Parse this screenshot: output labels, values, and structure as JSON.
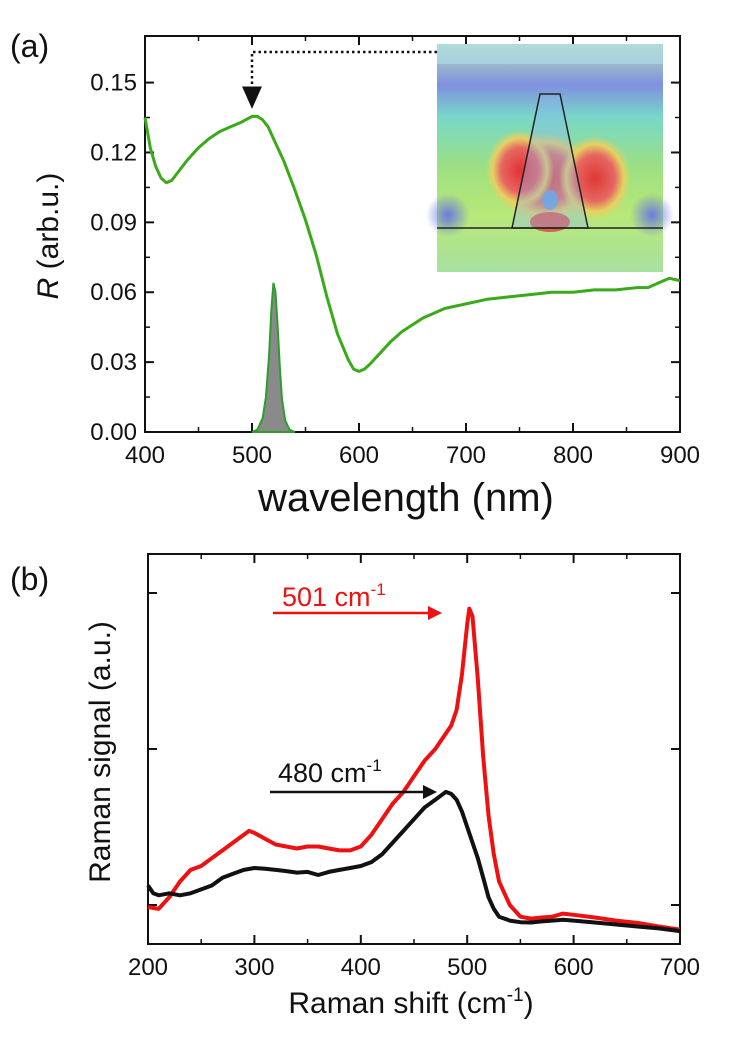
{
  "chart_data": [
    {
      "panel_label": "(a)",
      "type": "line",
      "xlabel": "wavelength (nm)",
      "ylabel_symbol": "R",
      "ylabel_unit": " (arb.u.)",
      "xlim": [
        400,
        900
      ],
      "ylim": [
        0,
        0.17
      ],
      "xticks": [
        400,
        500,
        600,
        700,
        800,
        900
      ],
      "xtick_labels": [
        "400",
        "500",
        "600",
        "700",
        "800",
        "900"
      ],
      "yticks": [
        0,
        0.03,
        0.06,
        0.09,
        0.12,
        0.15
      ],
      "ytick_labels": [
        "0.00",
        "0.03",
        "0.06",
        "0.09",
        "0.12",
        "0.15"
      ],
      "colors": {
        "reflectance": "#3aaa1a",
        "laser": "#8a8a8a",
        "laser_edge": "#2e9c2e",
        "frame": "#111111",
        "annotation": "#111111"
      },
      "series": [
        {
          "name": "reflectance",
          "x": [
            400,
            405,
            410,
            415,
            420,
            425,
            430,
            440,
            450,
            460,
            470,
            480,
            490,
            500,
            505,
            510,
            515,
            520,
            525,
            530,
            540,
            550,
            560,
            570,
            580,
            590,
            595,
            600,
            605,
            610,
            620,
            630,
            640,
            650,
            660,
            670,
            680,
            700,
            720,
            740,
            760,
            780,
            800,
            820,
            840,
            860,
            870,
            880,
            890,
            900
          ],
          "y": [
            0.135,
            0.122,
            0.114,
            0.109,
            0.107,
            0.108,
            0.111,
            0.117,
            0.122,
            0.126,
            0.129,
            0.131,
            0.133,
            0.1355,
            0.1355,
            0.134,
            0.131,
            0.126,
            0.121,
            0.116,
            0.104,
            0.091,
            0.076,
            0.058,
            0.042,
            0.031,
            0.027,
            0.026,
            0.027,
            0.029,
            0.034,
            0.039,
            0.043,
            0.046,
            0.049,
            0.051,
            0.053,
            0.055,
            0.057,
            0.058,
            0.059,
            0.06,
            0.06,
            0.061,
            0.061,
            0.062,
            0.062,
            0.064,
            0.066,
            0.065
          ]
        },
        {
          "name": "laser",
          "type": "area",
          "x": [
            500,
            505,
            510,
            513,
            516,
            518,
            520,
            522,
            524,
            526,
            528,
            531,
            535,
            540
          ],
          "y": [
            0,
            0.001,
            0.006,
            0.015,
            0.033,
            0.052,
            0.064,
            0.06,
            0.045,
            0.028,
            0.014,
            0.005,
            0.001,
            0
          ]
        }
      ],
      "annotation": {
        "type": "dotted-arrow",
        "from": "inset",
        "to_x": 500,
        "to_y": 0.137
      },
      "inset": {
        "type": "field-map-image",
        "depicts": "electric field distribution around trapezoidal nanostructure"
      }
    },
    {
      "panel_label": "(b)",
      "type": "line",
      "xlabel_main": "Raman shift (cm",
      "xlabel_sup": "-1",
      "xlabel_end": ")",
      "ylabel": "Raman signal (a.u.)",
      "xlim": [
        200,
        700
      ],
      "ylim": [
        0,
        1
      ],
      "xticks": [
        200,
        300,
        400,
        500,
        600,
        700
      ],
      "xtick_labels": [
        "200",
        "300",
        "400",
        "500",
        "600",
        "700"
      ],
      "yticks": [
        0.1,
        0.5,
        0.9
      ],
      "colors": {
        "red": "#ee1111",
        "black": "#111111"
      },
      "series": [
        {
          "name": "red",
          "x": [
            200,
            210,
            220,
            230,
            240,
            250,
            260,
            270,
            280,
            290,
            295,
            300,
            310,
            320,
            330,
            340,
            350,
            360,
            370,
            380,
            390,
            400,
            410,
            420,
            430,
            440,
            450,
            460,
            470,
            480,
            485,
            490,
            495,
            500,
            502,
            505,
            510,
            515,
            520,
            525,
            530,
            540,
            550,
            560,
            570,
            580,
            590,
            600,
            620,
            640,
            660,
            680,
            700
          ],
          "y": [
            0.095,
            0.09,
            0.12,
            0.16,
            0.19,
            0.2,
            0.22,
            0.24,
            0.26,
            0.28,
            0.29,
            0.285,
            0.27,
            0.255,
            0.25,
            0.245,
            0.25,
            0.25,
            0.245,
            0.24,
            0.24,
            0.25,
            0.28,
            0.32,
            0.36,
            0.39,
            0.43,
            0.47,
            0.5,
            0.54,
            0.56,
            0.6,
            0.69,
            0.82,
            0.86,
            0.84,
            0.68,
            0.48,
            0.33,
            0.23,
            0.16,
            0.1,
            0.07,
            0.065,
            0.068,
            0.07,
            0.078,
            0.075,
            0.068,
            0.06,
            0.054,
            0.045,
            0.037
          ]
        },
        {
          "name": "black",
          "x": [
            200,
            205,
            210,
            220,
            230,
            240,
            250,
            260,
            270,
            280,
            290,
            300,
            310,
            320,
            330,
            340,
            350,
            360,
            370,
            380,
            390,
            400,
            410,
            420,
            430,
            440,
            450,
            460,
            470,
            475,
            480,
            485,
            490,
            495,
            500,
            505,
            510,
            515,
            520,
            525,
            530,
            540,
            550,
            560,
            570,
            580,
            590,
            600,
            620,
            640,
            660,
            680,
            700
          ],
          "y": [
            0.15,
            0.13,
            0.125,
            0.13,
            0.125,
            0.13,
            0.14,
            0.15,
            0.17,
            0.18,
            0.19,
            0.195,
            0.193,
            0.19,
            0.187,
            0.183,
            0.185,
            0.177,
            0.185,
            0.19,
            0.195,
            0.2,
            0.21,
            0.23,
            0.26,
            0.29,
            0.32,
            0.35,
            0.37,
            0.38,
            0.39,
            0.385,
            0.37,
            0.34,
            0.3,
            0.26,
            0.22,
            0.17,
            0.12,
            0.09,
            0.07,
            0.06,
            0.056,
            0.055,
            0.058,
            0.06,
            0.062,
            0.06,
            0.055,
            0.05,
            0.045,
            0.04,
            0.033
          ]
        }
      ],
      "annotations": [
        {
          "label_main": "501 cm",
          "label_sup": "-1",
          "color": "#ee1111",
          "arrow_x": [
            313,
            455
          ],
          "arrow_y": 0.905
        },
        {
          "label_main": "480 cm",
          "label_sup": "-1",
          "color": "#111111",
          "arrow_x": [
            310,
            450
          ],
          "arrow_y": 0.385
        }
      ]
    }
  ]
}
